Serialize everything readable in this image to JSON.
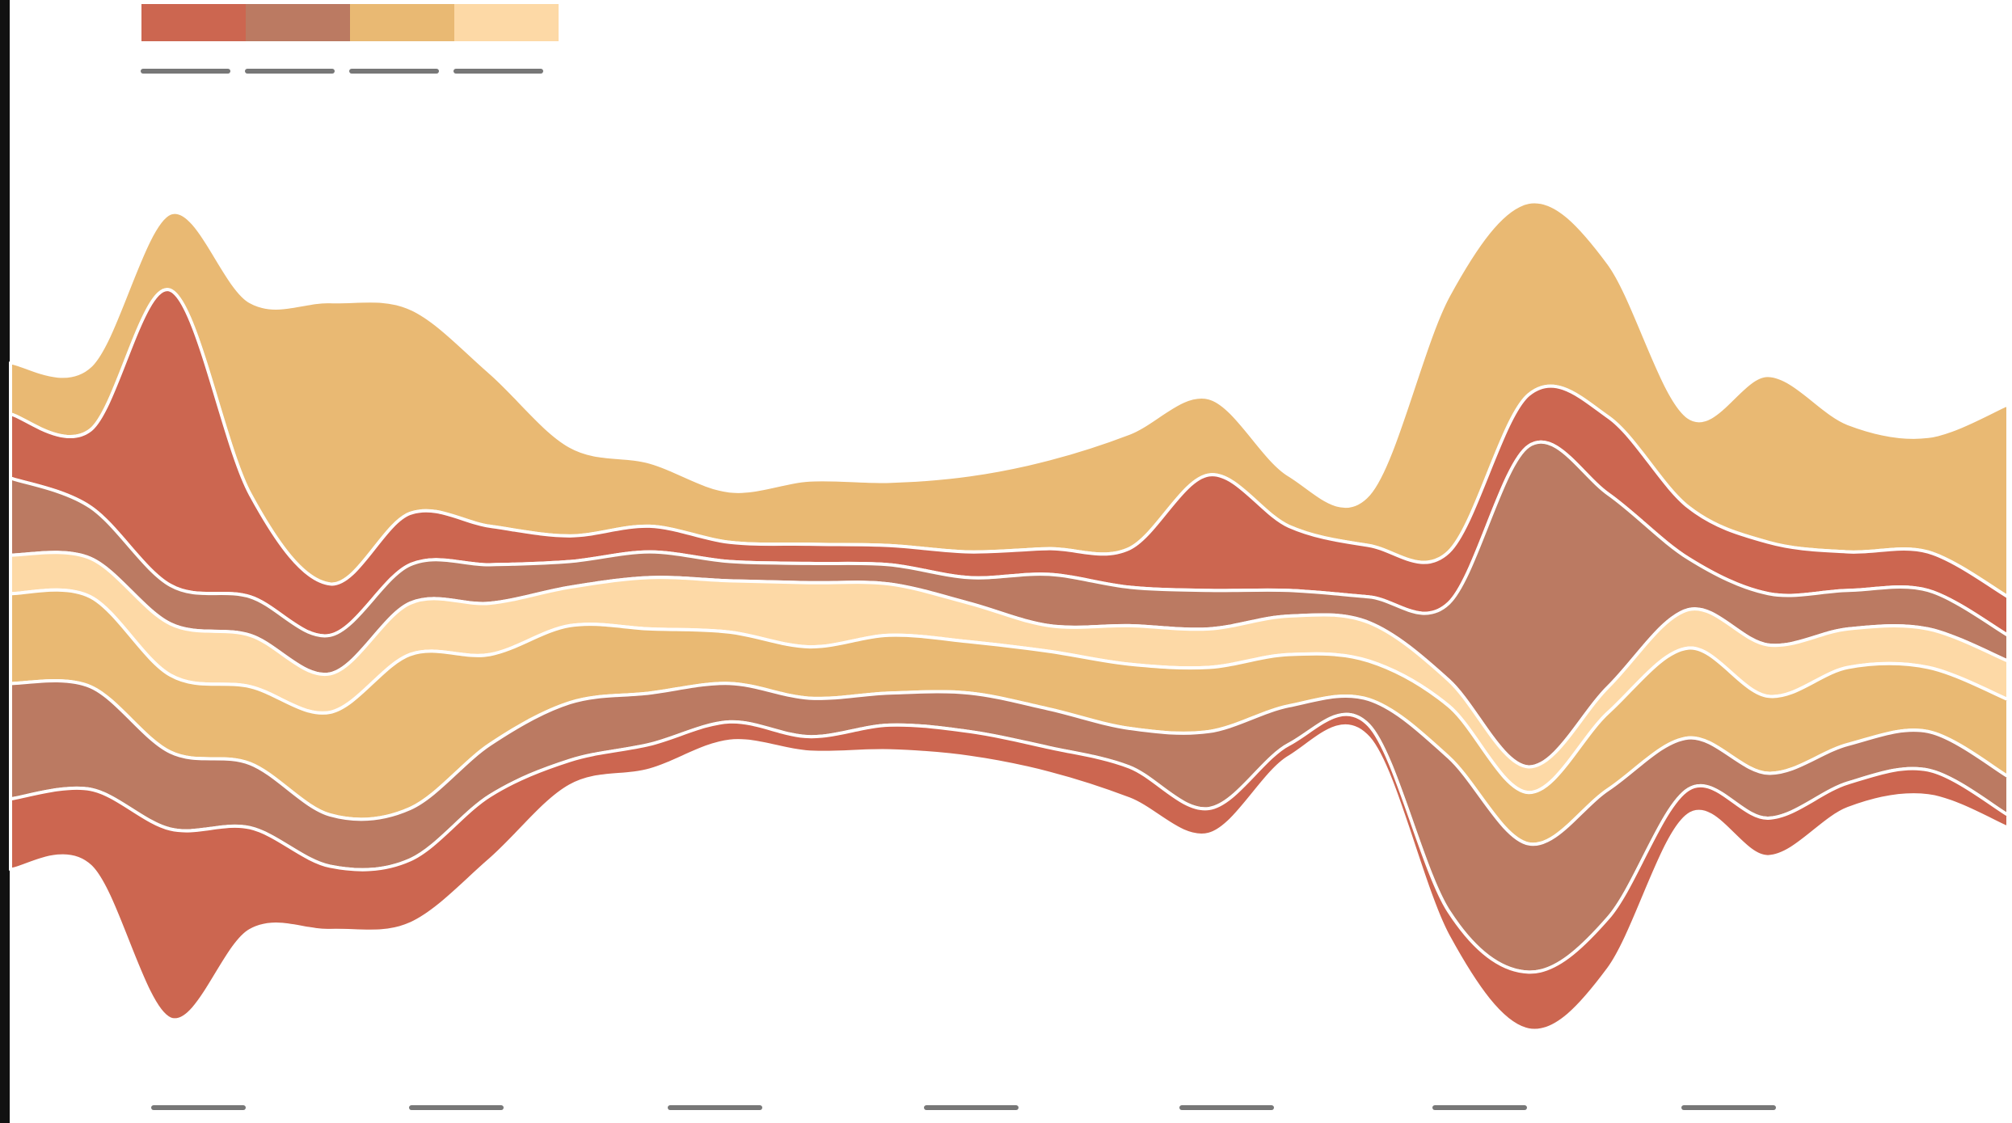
{
  "chart_data": {
    "type": "streamgraph",
    "palette": [
      "#cc6650",
      "#bb7a62",
      "#e9b973",
      "#fdd9a6"
    ],
    "series": [
      {
        "color": "#e9b973",
        "values": [
          40,
          50,
          60,
          150,
          220,
          160,
          120,
          70,
          50,
          40,
          50,
          50,
          60,
          70,
          90,
          60,
          40,
          40,
          200,
          150,
          120,
          70,
          130,
          100,
          90,
          150
        ]
      },
      {
        "color": "#cc6650",
        "values": [
          50,
          60,
          230,
          80,
          40,
          40,
          30,
          20,
          20,
          15,
          15,
          15,
          20,
          20,
          30,
          90,
          50,
          40,
          40,
          40,
          60,
          40,
          40,
          30,
          30,
          30
        ]
      },
      {
        "color": "#bb7a62",
        "values": [
          60,
          40,
          30,
          30,
          30,
          30,
          30,
          20,
          20,
          15,
          15,
          15,
          20,
          40,
          30,
          30,
          20,
          20,
          60,
          250,
          150,
          40,
          40,
          30,
          30,
          20
        ]
      },
      {
        "color": "#fdd9a6",
        "values": [
          30,
          30,
          40,
          40,
          30,
          40,
          40,
          30,
          40,
          40,
          50,
          40,
          30,
          20,
          30,
          30,
          30,
          30,
          20,
          20,
          20,
          30,
          40,
          30,
          30,
          30
        ]
      },
      {
        "color": "#e9b973",
        "values": [
          70,
          70,
          60,
          60,
          80,
          120,
          70,
          60,
          50,
          40,
          40,
          45,
          40,
          45,
          50,
          50,
          40,
          30,
          40,
          40,
          60,
          70,
          60,
          60,
          50,
          60
        ]
      },
      {
        "color": "#bb7a62",
        "values": [
          90,
          80,
          60,
          50,
          40,
          40,
          40,
          45,
          40,
          30,
          30,
          25,
          30,
          30,
          30,
          60,
          30,
          20,
          120,
          100,
          100,
          40,
          35,
          30,
          30,
          30
        ]
      },
      {
        "color": "#cc6650",
        "values": [
          55,
          60,
          148,
          80,
          50,
          50,
          50,
          20,
          20,
          15,
          12,
          20,
          20,
          20,
          25,
          20,
          10,
          10,
          20,
          45,
          40,
          20,
          30,
          20,
          20,
          10
        ]
      }
    ]
  }
}
